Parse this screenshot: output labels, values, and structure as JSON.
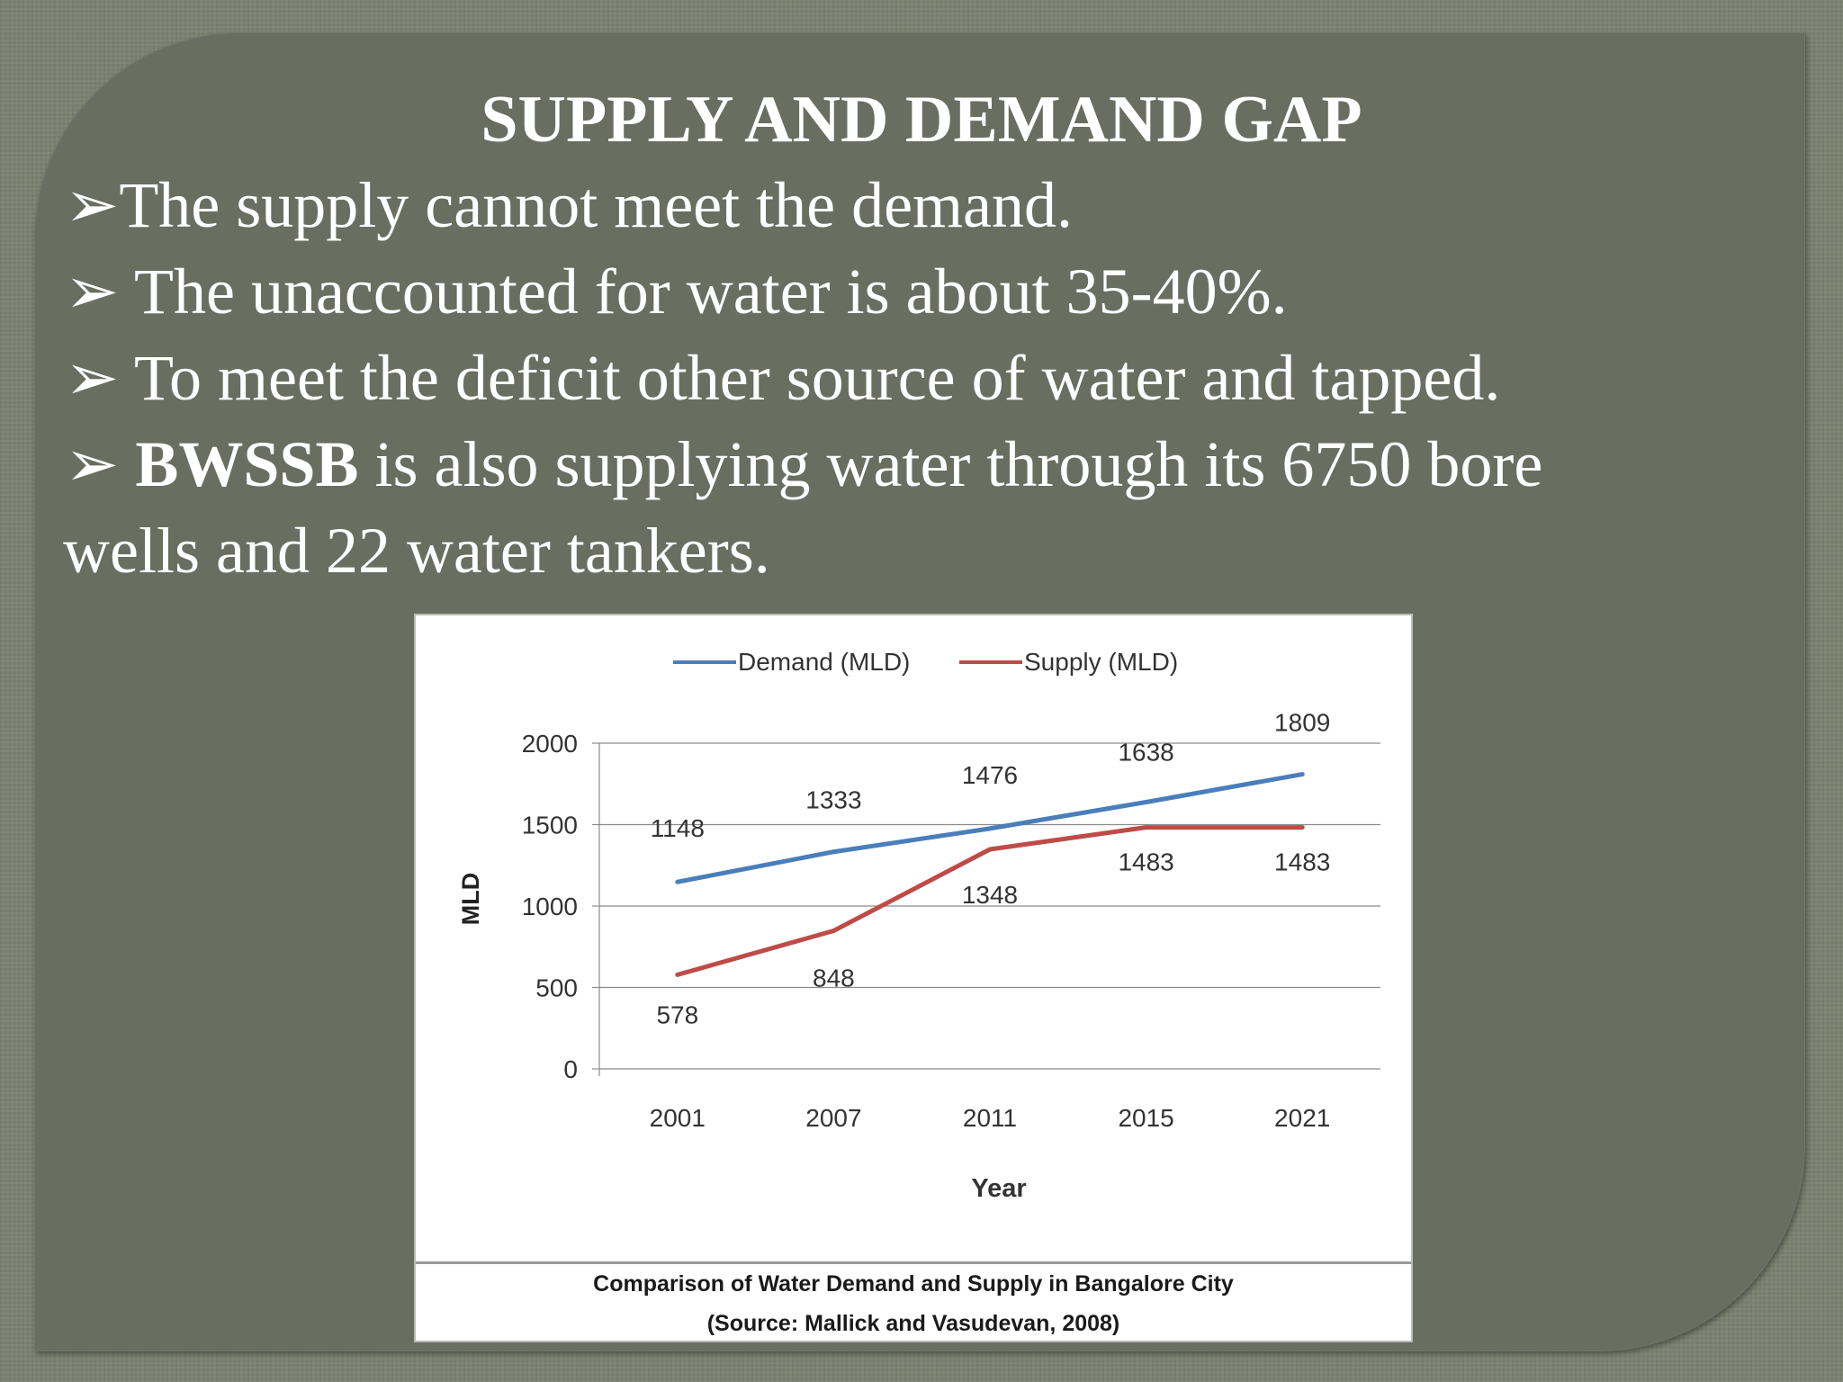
{
  "slide": {
    "title": "SUPPLY AND DEMAND GAP",
    "bullet_marker": "➢",
    "bullets": [
      {
        "text": "The supply cannot meet the demand."
      },
      {
        "text": " The unaccounted for water is about 35-40%."
      },
      {
        "text": " To meet the deficit other source of water and tapped."
      },
      {
        "bold": "BWSSB",
        "text": " is also supplying water through its 6750 bore"
      }
    ],
    "bullet_continuation": "wells and 22 water tankers."
  },
  "colors": {
    "demand": "#4a7ebb",
    "supply": "#be4b48",
    "slide_background": "#6a6e61"
  },
  "chart_data": {
    "type": "line",
    "categories": [
      "2001",
      "2007",
      "2011",
      "2015",
      "2021"
    ],
    "series": [
      {
        "name": "Demand (MLD)",
        "values": [
          1148,
          1333,
          1476,
          1638,
          1809
        ],
        "color": "#4a7ebb"
      },
      {
        "name": "Supply (MLD)",
        "values": [
          578,
          848,
          1348,
          1483,
          1483
        ],
        "color": "#be4b48"
      }
    ],
    "xlabel": "Year",
    "ylabel": "MLD",
    "ylim": [
      0,
      2000
    ],
    "yticks": [
      0,
      500,
      1000,
      1500,
      2000
    ],
    "grid": true,
    "legend": "top",
    "caption": [
      "Comparison of Water Demand and Supply in Bangalore City",
      "(Source: Mallick and Vasudevan, 2008)"
    ]
  }
}
